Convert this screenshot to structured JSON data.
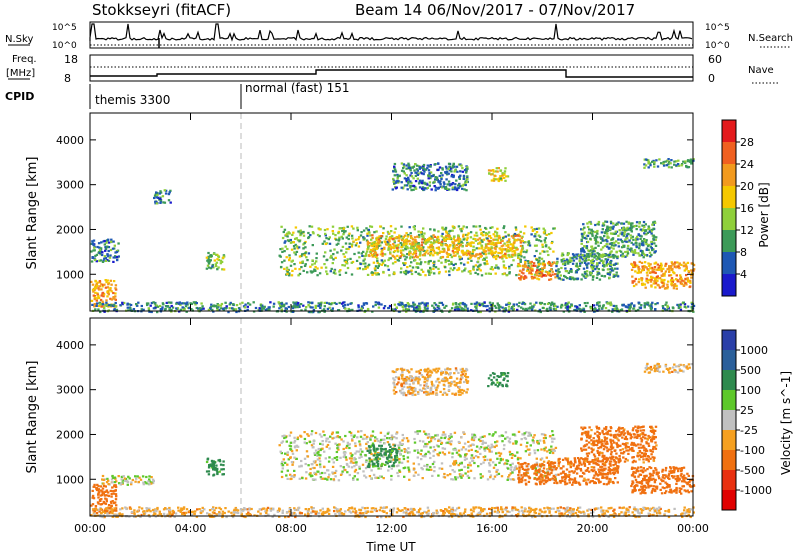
{
  "header": {
    "station": "Stokkseyri (fitACF)",
    "beam_date": "Beam 14  06/Nov/2017 - 07/Nov/2017"
  },
  "panels": {
    "nsky": {
      "label": "N.Sky",
      "left_ticks": [
        "10^5",
        "10^0"
      ],
      "right_ticks": [
        "10^5",
        "10^0"
      ],
      "right_label": "N.Search"
    },
    "freq": {
      "label_top": "Freq.",
      "label_unit": "[MHz]",
      "left_ticks": [
        "18",
        "8"
      ],
      "right_ticks": [
        "60",
        "0"
      ],
      "right_label": "Nave"
    },
    "cpid": {
      "label": "CPID",
      "modes": [
        "themis 3300",
        "normal (fast) 151"
      ]
    }
  },
  "axes": {
    "ylabel": "Slant Range [km]",
    "y_ticks": [
      "4000",
      "3000",
      "2000",
      "1000"
    ],
    "x_ticks": [
      "00:00",
      "04:00",
      "08:00",
      "12:00",
      "16:00",
      "20:00",
      "00:00"
    ],
    "xlabel": "Time UT"
  },
  "power_colorbar": {
    "label": "Power [dB]",
    "ticks": [
      "28",
      "24",
      "20",
      "16",
      "12",
      "8",
      "4"
    ],
    "colors": [
      "#e41a1c",
      "#f06020",
      "#f29a1e",
      "#f5c800",
      "#8fcf3a",
      "#3c9a58",
      "#1e58b4",
      "#1a1acc"
    ]
  },
  "velocity_colorbar": {
    "label": "Velocity [m s^-1]",
    "ticks": [
      "1000",
      "500",
      "100",
      "25",
      "-25",
      "-100",
      "-500",
      "-1000"
    ],
    "colors": [
      "#2a3fa8",
      "#2a5f9a",
      "#2e8a4e",
      "#5ec82a",
      "#c0c0c0",
      "#f5a020",
      "#f07010",
      "#e83010",
      "#e00000"
    ]
  },
  "chart_data": [
    {
      "type": "heatmap",
      "title": "Power",
      "xlabel": "Time UT",
      "ylabel": "Slant Range [km]",
      "xlim": [
        0,
        24
      ],
      "ylim": [
        180,
        4600
      ],
      "colorbar_label": "Power [dB]",
      "colorbar_range": [
        0,
        30
      ],
      "regions": [
        {
          "t0": 0.0,
          "t1": 1.0,
          "r0": 300,
          "r1": 900,
          "value": 20
        },
        {
          "t0": 0.0,
          "t1": 1.1,
          "r0": 1300,
          "r1": 1800,
          "value": 8
        },
        {
          "t0": 0.0,
          "t1": 24.0,
          "r0": 180,
          "r1": 400,
          "value": 8
        },
        {
          "t0": 2.5,
          "t1": 3.2,
          "r0": 2600,
          "r1": 2900,
          "value": 8
        },
        {
          "t0": 4.6,
          "t1": 5.3,
          "r0": 1100,
          "r1": 1500,
          "value": 12
        },
        {
          "t0": 7.5,
          "t1": 18.5,
          "r0": 1000,
          "r1": 2100,
          "value": 12
        },
        {
          "t0": 11.0,
          "t1": 17.2,
          "r0": 1400,
          "r1": 1900,
          "value": 18
        },
        {
          "t0": 12.0,
          "t1": 15.0,
          "r0": 2900,
          "r1": 3500,
          "value": 8
        },
        {
          "t0": 15.8,
          "t1": 16.6,
          "r0": 3100,
          "r1": 3400,
          "value": 16
        },
        {
          "t0": 17.0,
          "t1": 18.5,
          "r0": 900,
          "r1": 1300,
          "value": 22
        },
        {
          "t0": 18.5,
          "t1": 21.0,
          "r0": 900,
          "r1": 1500,
          "value": 10
        },
        {
          "t0": 19.5,
          "t1": 22.5,
          "r0": 1400,
          "r1": 2200,
          "value": 10
        },
        {
          "t0": 21.5,
          "t1": 24.0,
          "r0": 700,
          "r1": 1300,
          "value": 20
        },
        {
          "t0": 22.0,
          "t1": 24.0,
          "r0": 3400,
          "r1": 3600,
          "value": 10
        }
      ]
    },
    {
      "type": "heatmap",
      "title": "Velocity",
      "xlabel": "Time UT",
      "ylabel": "Slant Range [km]",
      "xlim": [
        0,
        24
      ],
      "ylim": [
        180,
        4600
      ],
      "colorbar_label": "Velocity [m s^-1]",
      "colorbar_range": [
        -1000,
        1000
      ],
      "regions": [
        {
          "t0": 0.0,
          "t1": 1.0,
          "r0": 300,
          "r1": 900,
          "value": -200
        },
        {
          "t0": 0.4,
          "t1": 2.5,
          "r0": 900,
          "r1": 1100,
          "value": 0
        },
        {
          "t0": 0.0,
          "t1": 24.0,
          "r0": 180,
          "r1": 400,
          "value": -50
        },
        {
          "t0": 4.6,
          "t1": 5.3,
          "r0": 1100,
          "r1": 1500,
          "value": 150
        },
        {
          "t0": 7.5,
          "t1": 18.5,
          "r0": 1000,
          "r1": 2100,
          "value": 0
        },
        {
          "t0": 11.0,
          "t1": 12.2,
          "r0": 1300,
          "r1": 1800,
          "value": 150
        },
        {
          "t0": 12.0,
          "t1": 15.0,
          "r0": 2900,
          "r1": 3500,
          "value": -50
        },
        {
          "t0": 15.8,
          "t1": 16.6,
          "r0": 3100,
          "r1": 3400,
          "value": 150
        },
        {
          "t0": 17.0,
          "t1": 18.5,
          "r0": 900,
          "r1": 1400,
          "value": -400
        },
        {
          "t0": 18.5,
          "t1": 21.0,
          "r0": 900,
          "r1": 1500,
          "value": -150
        },
        {
          "t0": 19.5,
          "t1": 22.5,
          "r0": 1400,
          "r1": 2200,
          "value": -150
        },
        {
          "t0": 21.5,
          "t1": 24.0,
          "r0": 700,
          "r1": 1300,
          "value": -300
        },
        {
          "t0": 22.0,
          "t1": 24.0,
          "r0": 3400,
          "r1": 3600,
          "value": -50
        }
      ]
    }
  ]
}
